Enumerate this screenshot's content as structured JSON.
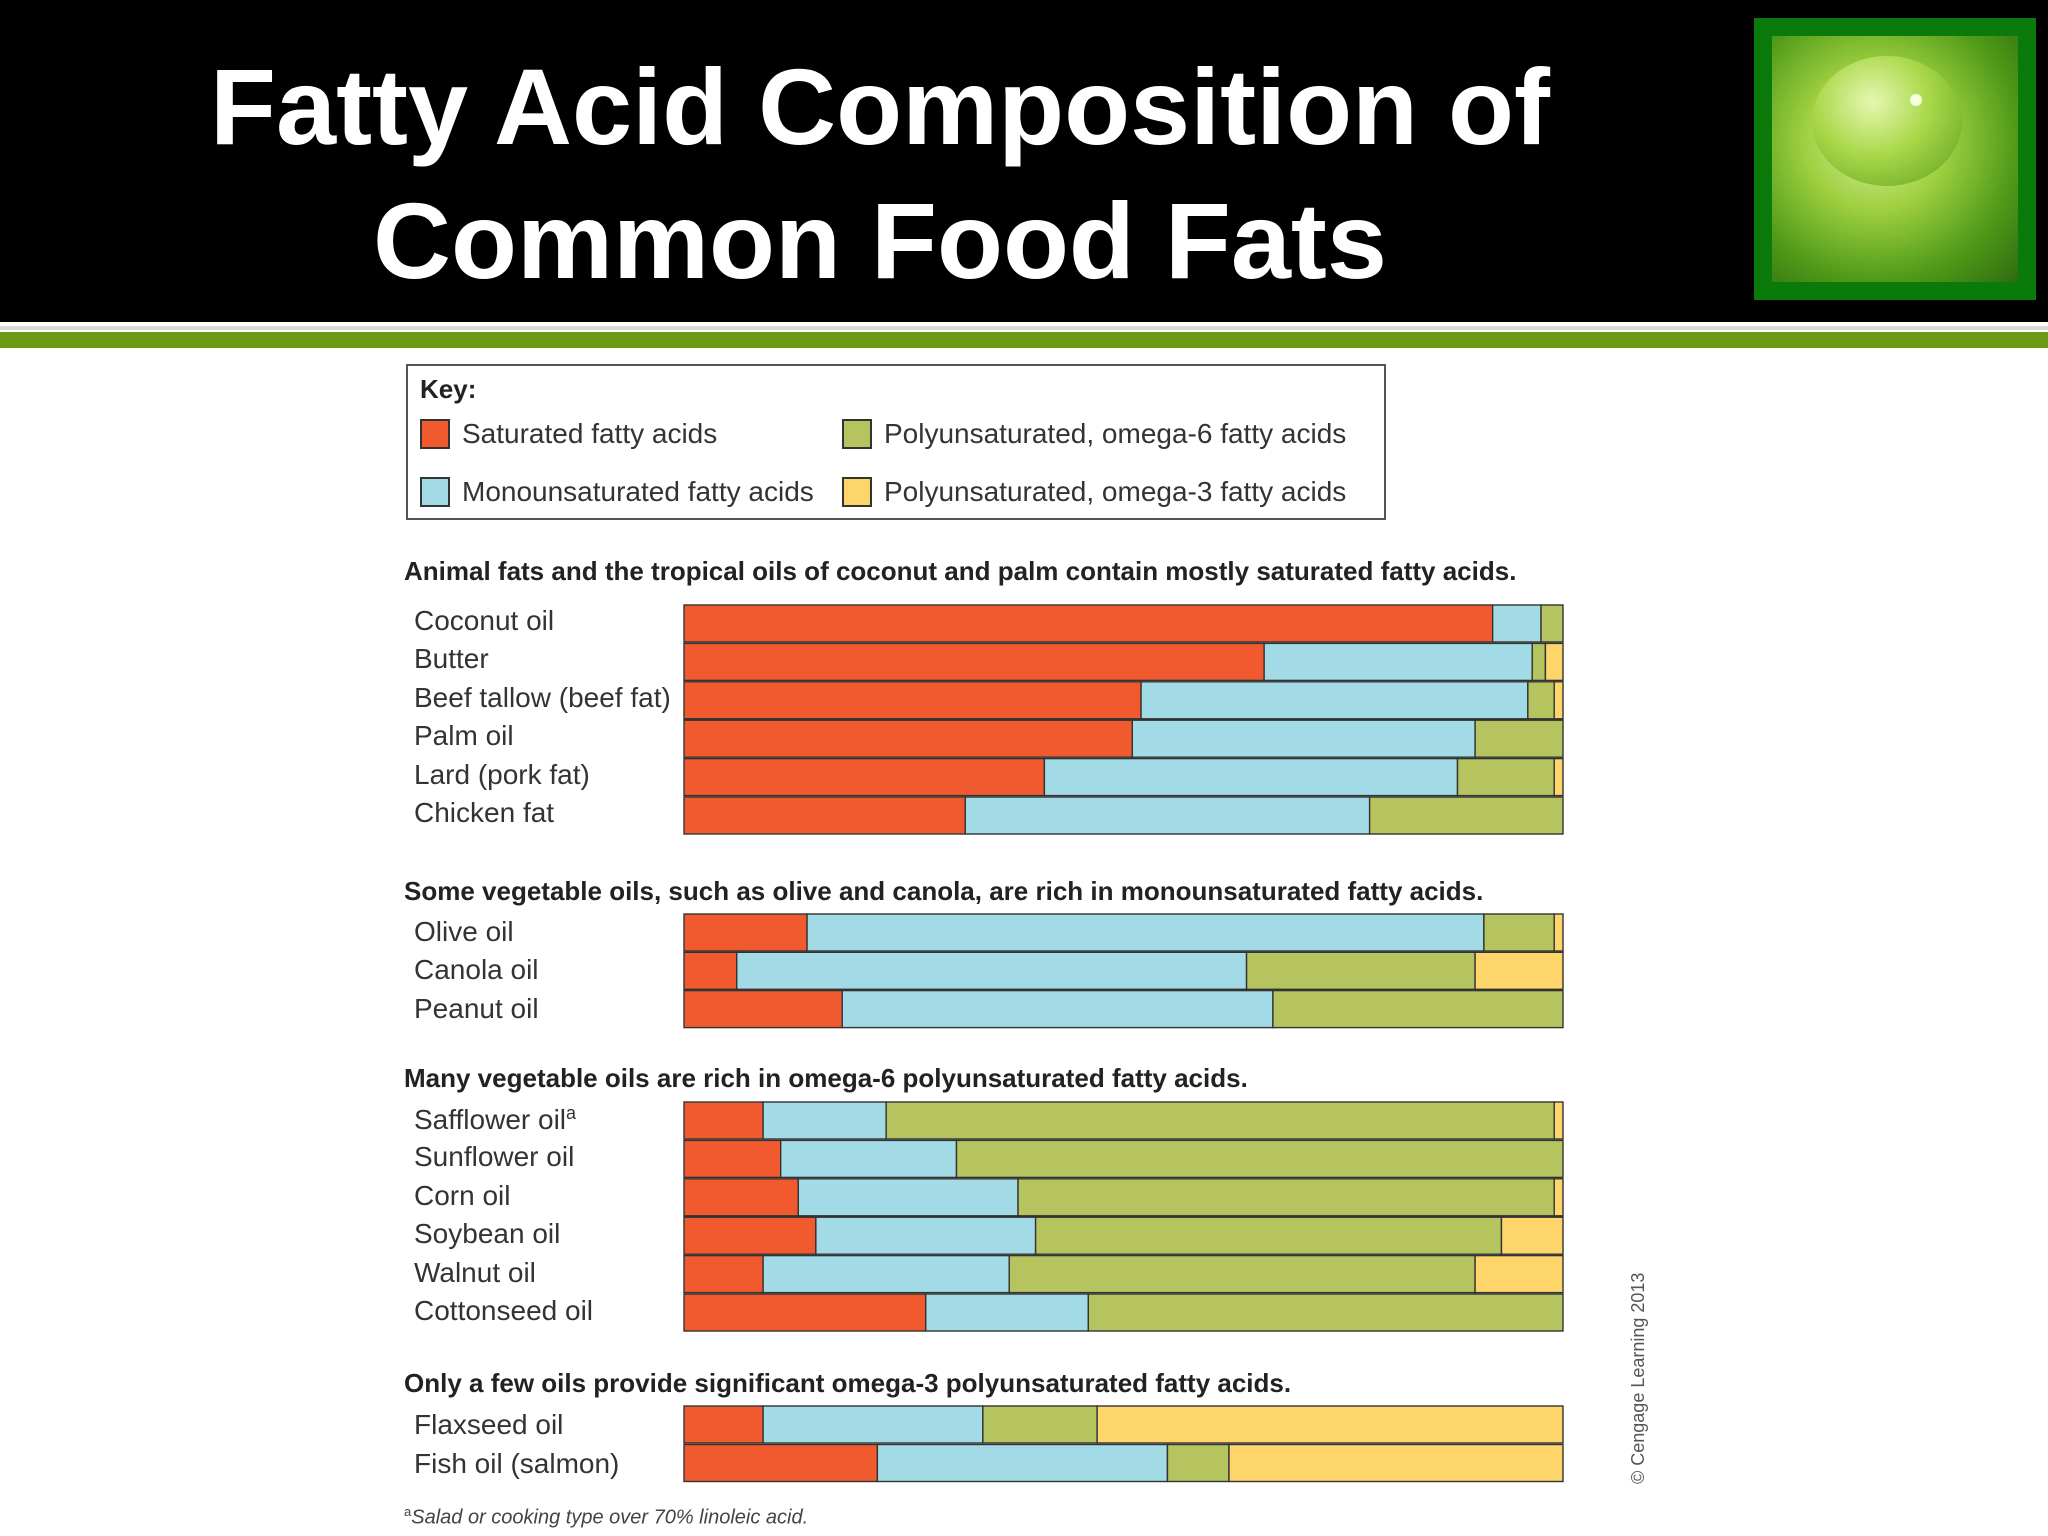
{
  "slide": {
    "title_line1": "Fatty Acid Composition of",
    "title_line2": "Common Food Fats"
  },
  "colors": {
    "saturated": "#f15a2f",
    "monounsaturated": "#a2dbe5",
    "omega6": "#b5c45e",
    "omega3": "#fed56b",
    "bar_stroke": "#333333"
  },
  "key": {
    "title": "Key:",
    "items": [
      {
        "label": "Saturated fatty acids",
        "color": "#f15a2f"
      },
      {
        "label": "Polyunsaturated, omega-6 fatty acids",
        "color": "#b5c45e"
      },
      {
        "label": "Monounsaturated fatty acids",
        "color": "#a2dbe5"
      },
      {
        "label": "Polyunsaturated, omega-3 fatty acids",
        "color": "#fed56b"
      }
    ]
  },
  "sections": [
    {
      "heading": "Animal fats and the tropical oils of coconut and palm contain mostly saturated fatty acids."
    },
    {
      "heading": "Some vegetable oils, such as olive and canola, are rich in monounsaturated fatty acids."
    },
    {
      "heading": "Many vegetable oils are rich in omega-6 polyunsaturated fatty acids."
    },
    {
      "heading": "Only a few oils provide significant omega-3 polyunsaturated fatty acids."
    }
  ],
  "chart_data": {
    "type": "bar",
    "orientation": "horizontal",
    "stacked": true,
    "xlim": [
      0,
      100
    ],
    "series_order": [
      "Saturated fatty acids",
      "Monounsaturated fatty acids",
      "Polyunsaturated, omega-6 fatty acids",
      "Polyunsaturated, omega-3 fatty acids"
    ],
    "groups": [
      {
        "rows": [
          {
            "label": "Coconut oil",
            "values": [
              92,
              5.5,
              2.5,
              0
            ]
          },
          {
            "label": "Butter",
            "values": [
              66,
              30.5,
              1.5,
              2
            ]
          },
          {
            "label": "Beef tallow (beef fat)",
            "values": [
              52,
              44,
              3,
              1
            ]
          },
          {
            "label": "Palm oil",
            "values": [
              51,
              39,
              10,
              0
            ]
          },
          {
            "label": "Lard (pork fat)",
            "values": [
              41,
              47,
              11,
              1
            ]
          },
          {
            "label": "Chicken fat",
            "values": [
              32,
              46,
              22,
              0
            ]
          }
        ]
      },
      {
        "rows": [
          {
            "label": "Olive oil",
            "values": [
              14,
              77,
              8,
              1
            ]
          },
          {
            "label": "Canola oil",
            "values": [
              6,
              58,
              26,
              10
            ]
          },
          {
            "label": "Peanut oil",
            "values": [
              18,
              49,
              33,
              0
            ]
          }
        ]
      },
      {
        "rows": [
          {
            "label": "Safflower oil",
            "footnote_mark": "a",
            "values": [
              9,
              14,
              76,
              1
            ]
          },
          {
            "label": "Sunflower oil",
            "values": [
              11,
              20,
              69,
              0
            ]
          },
          {
            "label": "Corn oil",
            "values": [
              13,
              25,
              61,
              1
            ]
          },
          {
            "label": "Soybean oil",
            "values": [
              15,
              25,
              53,
              7
            ]
          },
          {
            "label": "Walnut oil",
            "values": [
              9,
              28,
              53,
              10
            ]
          },
          {
            "label": "Cottonseed oil",
            "values": [
              27.5,
              18.5,
              54,
              0
            ]
          }
        ]
      },
      {
        "rows": [
          {
            "label": "Flaxseed oil",
            "values": [
              9,
              25,
              13,
              53
            ]
          },
          {
            "label": "Fish oil (salmon)",
            "values": [
              22,
              33,
              7,
              38
            ]
          }
        ]
      }
    ]
  },
  "footnote": {
    "mark": "a",
    "text": "Salad or cooking type over 70% linoleic acid."
  },
  "credit": "© Cengage Learning 2013"
}
